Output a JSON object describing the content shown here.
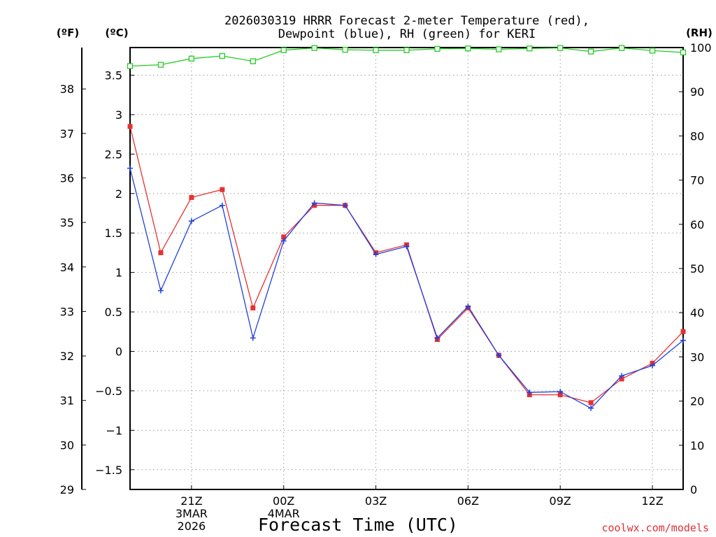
{
  "colors": {
    "temp": "#e83030",
    "dewpoint": "#2040e0",
    "rh": "#22cc22",
    "credit": "#e0303a"
  },
  "chart_data": {
    "type": "line",
    "title_line1": "2026030319 HRRR Forecast 2-meter Temperature (red),",
    "title_line2": "Dewpoint (blue), RH (green) for KERI",
    "unit_f": "(ºF)",
    "unit_c": "(ºC)",
    "unit_rh": "(RH)",
    "xlabel": "Forecast Time (UTC)",
    "credit": "coolwx.com/models",
    "x_hours": [
      0,
      1,
      2,
      3,
      4,
      5,
      6,
      7,
      8,
      9,
      10,
      11,
      12,
      13,
      14,
      15,
      16,
      17,
      18
    ],
    "ylim_c": [
      -1.75,
      3.85
    ],
    "ylim_rh": [
      0,
      100
    ],
    "ylim_f": [
      29,
      38.93
    ],
    "c_ticks": [
      -1.5,
      -1,
      -0.5,
      0,
      0.5,
      1,
      1.5,
      2,
      2.5,
      3,
      3.5
    ],
    "c_tick_labels": [
      "−1.5",
      "−1",
      "−0.5",
      "0",
      "0.5",
      "1",
      "1.5",
      "2",
      "2.5",
      "3",
      "3.5"
    ],
    "f_ticks": [
      29,
      30,
      31,
      32,
      33,
      34,
      35,
      36,
      37,
      38
    ],
    "f_tick_labels": [
      "29",
      "30",
      "31",
      "32",
      "33",
      "34",
      "35",
      "36",
      "37",
      "38"
    ],
    "rh_ticks": [
      0,
      10,
      20,
      30,
      40,
      50,
      60,
      70,
      80,
      90,
      100
    ],
    "rh_tick_labels": [
      "0",
      "10",
      "20",
      "30",
      "40",
      "50",
      "60",
      "70",
      "80",
      "90",
      "100"
    ],
    "x_ticks": [
      {
        "hour": 2,
        "labels": [
          "21Z",
          "3MAR",
          "2026"
        ]
      },
      {
        "hour": 5,
        "labels": [
          "00Z",
          "4MAR"
        ]
      },
      {
        "hour": 8,
        "labels": [
          "03Z"
        ]
      },
      {
        "hour": 11,
        "labels": [
          "06Z"
        ]
      },
      {
        "hour": 14,
        "labels": [
          "09Z"
        ]
      },
      {
        "hour": 17,
        "labels": [
          "12Z"
        ]
      }
    ],
    "series": [
      {
        "name": "Temperature",
        "unit": "C",
        "marker": "square",
        "values": [
          2.85,
          1.25,
          1.95,
          2.05,
          0.55,
          1.45,
          1.85,
          1.85,
          1.25,
          1.35,
          0.15,
          0.55,
          -0.05,
          -0.55,
          -0.55,
          -0.65,
          -0.35,
          -0.15,
          0.25
        ]
      },
      {
        "name": "Dewpoint",
        "unit": "C",
        "marker": "plus",
        "values": [
          2.32,
          0.77,
          1.65,
          1.85,
          0.17,
          1.4,
          1.88,
          1.85,
          1.23,
          1.33,
          0.17,
          0.57,
          -0.05,
          -0.52,
          -0.51,
          -0.72,
          -0.31,
          -0.18,
          0.14
        ]
      },
      {
        "name": "RH",
        "unit": "%",
        "marker": "open-square",
        "values": [
          95.8,
          96.1,
          97.5,
          98.1,
          96.9,
          99.4,
          99.9,
          99.5,
          99.4,
          99.4,
          99.7,
          99.8,
          99.6,
          99.8,
          99.9,
          99.1,
          99.9,
          99.3,
          98.9
        ]
      }
    ]
  }
}
